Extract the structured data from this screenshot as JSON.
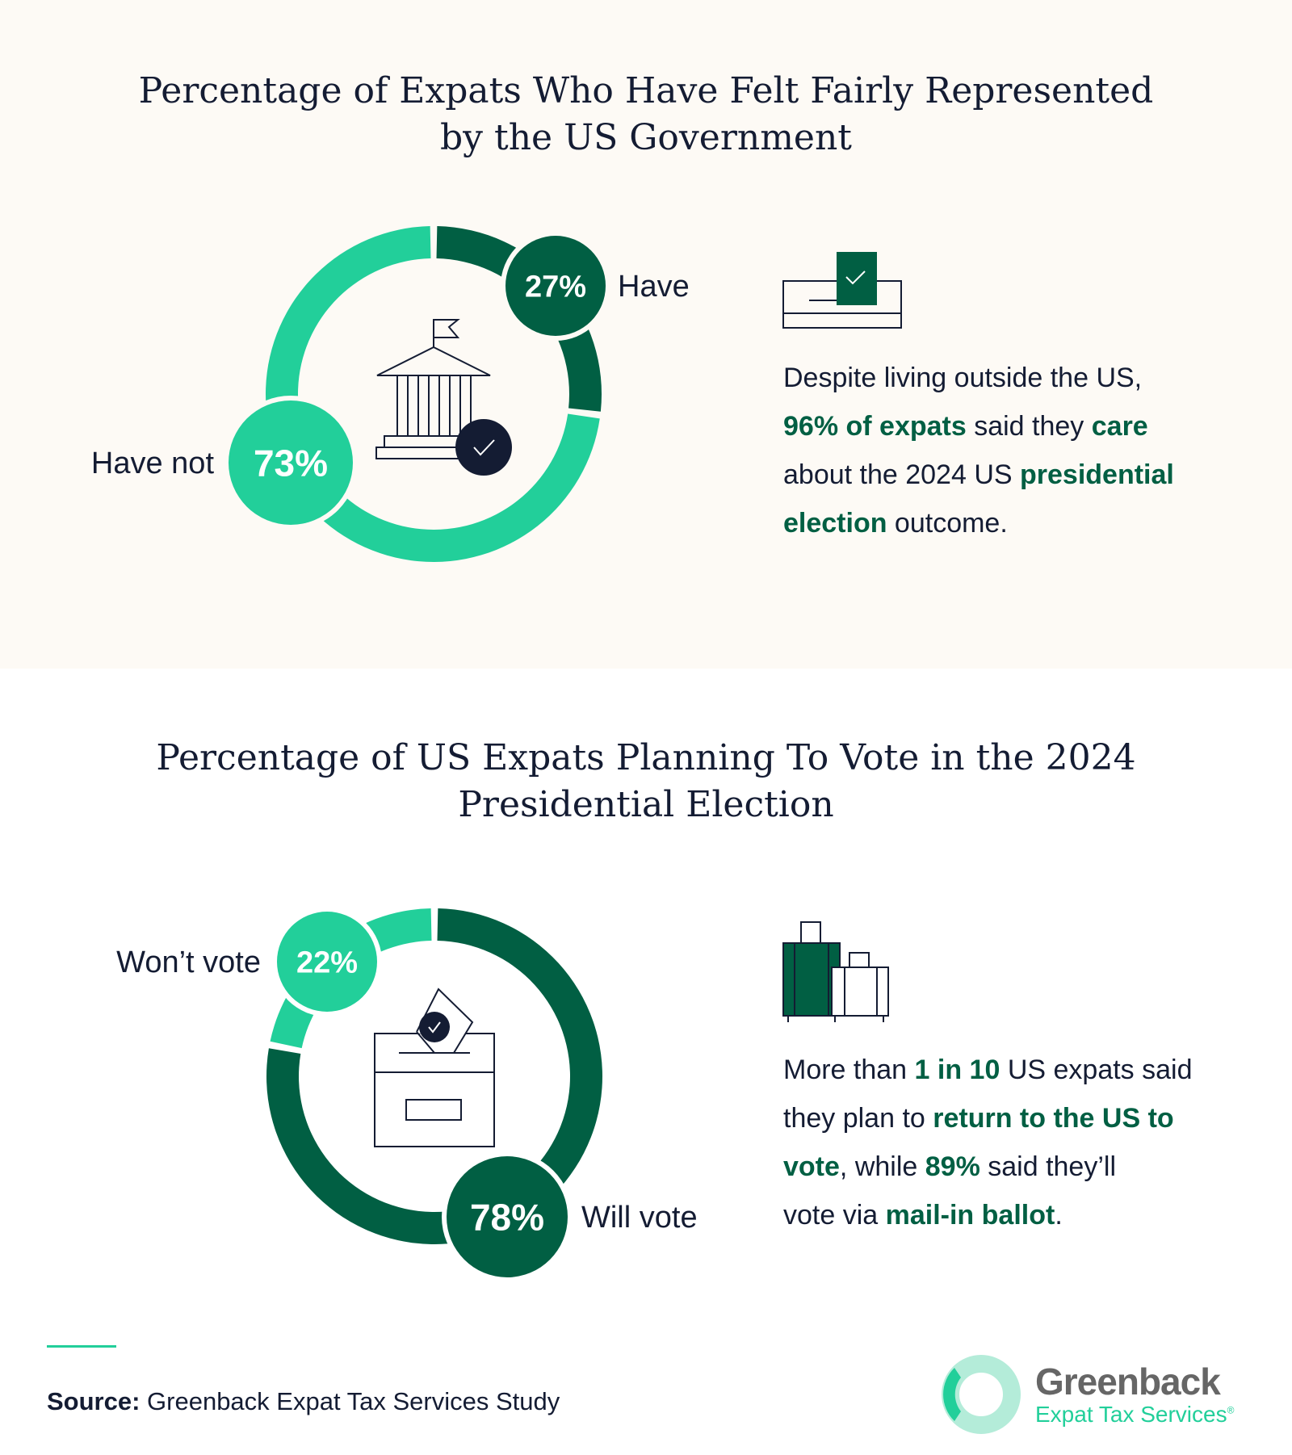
{
  "colors": {
    "light": "#22cf9a",
    "dark": "#015f43",
    "navy": "#141c33"
  },
  "chart_data": [
    {
      "type": "pie",
      "title": "Percentage of Expats Who Have Felt Fairly Represented by the US Government",
      "slices": [
        {
          "label": "Have",
          "value": 27,
          "display": "27%",
          "color": "#015f43"
        },
        {
          "label": "Have not",
          "value": 73,
          "display": "73%",
          "color": "#22cf9a"
        }
      ],
      "icon": "government-building-check-icon"
    },
    {
      "type": "pie",
      "title": "Percentage of US Expats Planning To Vote in the 2024 Presidential Election",
      "slices": [
        {
          "label": "Will vote",
          "value": 78,
          "display": "78%",
          "color": "#015f43"
        },
        {
          "label": "Won’t vote",
          "value": 22,
          "display": "22%",
          "color": "#22cf9a"
        }
      ],
      "icon": "ballot-box-icon"
    }
  ],
  "titles": {
    "t1_line1": "Percentage of Expats Who Have Felt Fairly Represented",
    "t1_line2": "by the US Government",
    "t2_line1": "Percentage of US Expats Planning To Vote in the 2024",
    "t2_line2": "Presidential Election"
  },
  "blurb1": {
    "a": "Despite living outside the US,",
    "b": "96% of expats",
    "c": " said they ",
    "d": "care",
    "e": "about the 2024 US ",
    "f": "presidential",
    "g": "election",
    "h": " outcome."
  },
  "blurb2": {
    "a": "More than ",
    "b": "1 in 10",
    "c": " US expats said",
    "d": "they plan to ",
    "e": "return to the US to",
    "f": "vote",
    "g": ", while ",
    "h": "89%",
    "i": " said they’ll",
    "j": "vote via ",
    "k": "mail-in ballot",
    "l": "."
  },
  "source": {
    "label": "Source:",
    "text": " Greenback Expat Tax Services Study"
  },
  "logo": {
    "name": "Greenback",
    "sub": "Expat Tax Services",
    "mark": "®"
  }
}
